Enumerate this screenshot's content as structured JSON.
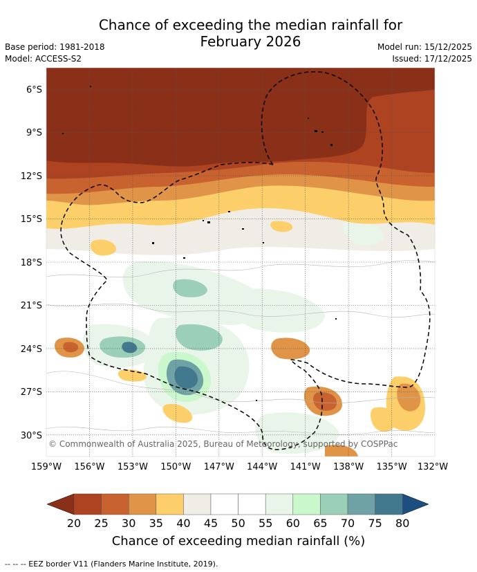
{
  "title_line1": "Chance of exceeding the median rainfall for",
  "title_line2": "February 2026",
  "base_period": "Base period: 1981-2018",
  "model": "Model: ACCESS-S2",
  "model_run": "Model run: 15/12/2025",
  "issued": "Issued: 17/12/2025",
  "map": {
    "lon_labels": [
      "159°W",
      "156°W",
      "153°W",
      "150°W",
      "147°W",
      "144°W",
      "141°W",
      "138°W",
      "135°W",
      "132°W"
    ],
    "lat_labels": [
      "6°S",
      "9°S",
      "12°S",
      "15°S",
      "18°S",
      "21°S",
      "24°S",
      "27°S",
      "30°S"
    ],
    "lon_range": [
      -159,
      -132
    ],
    "lat_range": [
      -4.5,
      -31.5
    ],
    "copyright": "© Commonwealth of Australia 2025, Bureau of Meteorology, supported by COSPPac"
  },
  "colorbar": {
    "ticks": [
      "20",
      "25",
      "30",
      "35",
      "40",
      "45",
      "50",
      "55",
      "60",
      "65",
      "70",
      "75",
      "80"
    ],
    "label": "Chance of exceeding median rainfall (%)",
    "low_extend_color": "#8a3018",
    "high_extend_color": "#1c4f80",
    "colors": [
      "#ad4320",
      "#c8622e",
      "#e09448",
      "#fdcf6b",
      "#f0ede6",
      "#ffffff",
      "#ffffff",
      "#eaf5ea",
      "#caf8cc",
      "#9ccfb8",
      "#6ea2a4",
      "#43798f"
    ]
  },
  "footer_text": "--  --  -- EEZ border V11 (Flanders Marine Institute, 2019)."
}
